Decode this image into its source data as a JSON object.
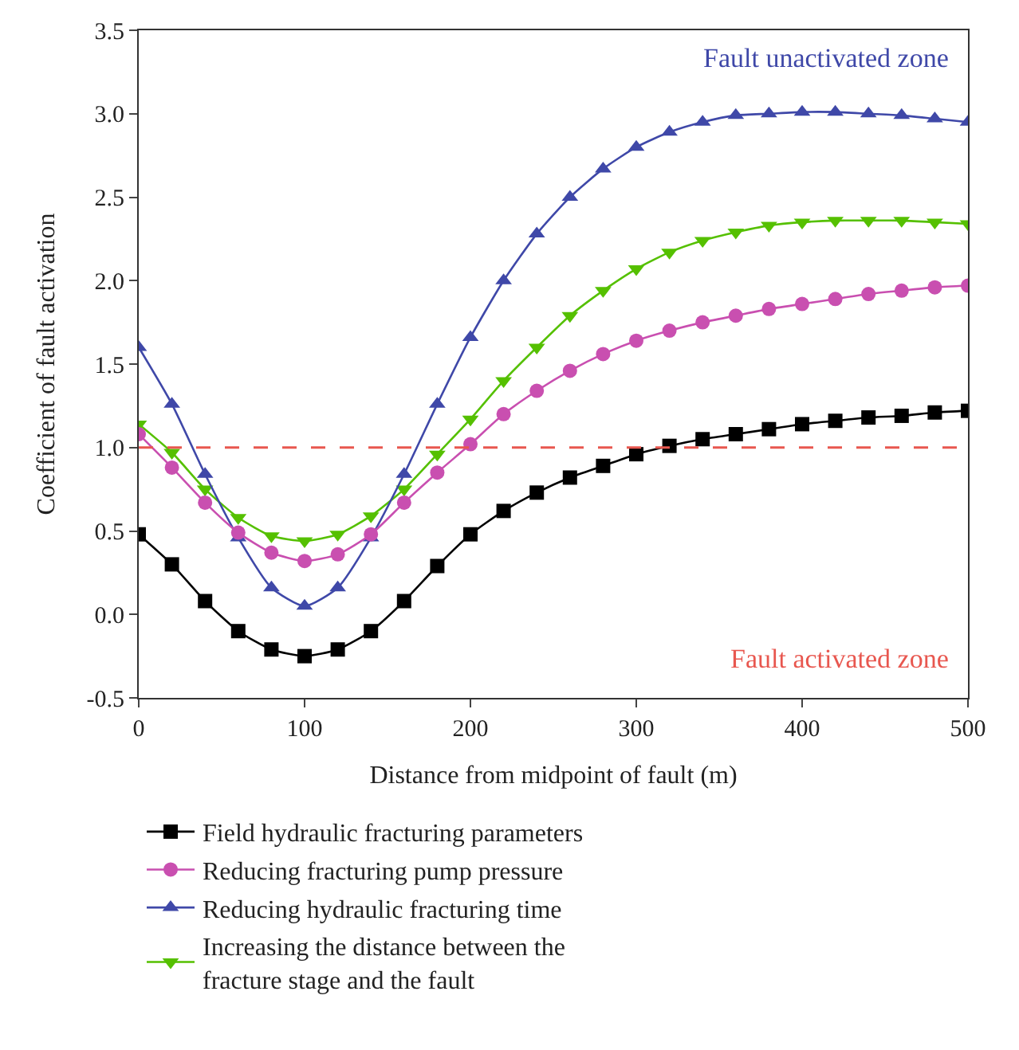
{
  "chart_data": {
    "type": "line",
    "xlabel": "Distance from midpoint of fault (m)",
    "ylabel": "Coefficient of fault activation",
    "x": [
      0,
      20,
      40,
      60,
      80,
      100,
      120,
      140,
      160,
      180,
      200,
      220,
      240,
      260,
      280,
      300,
      320,
      340,
      360,
      380,
      400,
      420,
      440,
      460,
      480,
      500
    ],
    "series": [
      {
        "name": "Field hydraulic fracturing parameters",
        "color": "#000000",
        "marker": "square",
        "values": [
          0.48,
          0.3,
          0.08,
          -0.1,
          -0.21,
          -0.25,
          -0.21,
          -0.1,
          0.08,
          0.29,
          0.48,
          0.62,
          0.73,
          0.82,
          0.89,
          0.96,
          1.01,
          1.05,
          1.08,
          1.11,
          1.14,
          1.16,
          1.18,
          1.19,
          1.21,
          1.22
        ]
      },
      {
        "name": "Reducing fracturing pump pressure",
        "color": "#c94fb0",
        "marker": "circle",
        "values": [
          1.08,
          0.88,
          0.67,
          0.49,
          0.37,
          0.32,
          0.36,
          0.48,
          0.67,
          0.85,
          1.02,
          1.2,
          1.34,
          1.46,
          1.56,
          1.64,
          1.7,
          1.75,
          1.79,
          1.83,
          1.86,
          1.89,
          1.92,
          1.94,
          1.96,
          1.97
        ]
      },
      {
        "name": "Reducing hydraulic fracturing time",
        "color": "#3f48a8",
        "marker": "triangle",
        "values": [
          1.6,
          1.26,
          0.84,
          0.46,
          0.16,
          0.05,
          0.16,
          0.46,
          0.84,
          1.26,
          1.66,
          2.0,
          2.28,
          2.5,
          2.67,
          2.8,
          2.89,
          2.95,
          2.99,
          3.0,
          3.01,
          3.01,
          3.0,
          2.99,
          2.97,
          2.95
        ]
      },
      {
        "name": "Increasing the distance between the fracture stage and the fault",
        "color": "#55c000",
        "marker": "triangle-down",
        "values": [
          1.14,
          0.97,
          0.75,
          0.58,
          0.47,
          0.44,
          0.48,
          0.59,
          0.75,
          0.96,
          1.17,
          1.4,
          1.6,
          1.79,
          1.94,
          2.07,
          2.17,
          2.24,
          2.29,
          2.33,
          2.35,
          2.36,
          2.36,
          2.36,
          2.35,
          2.34
        ]
      }
    ],
    "xlim": [
      0,
      500
    ],
    "xticks": [
      0,
      100,
      200,
      300,
      400,
      500
    ],
    "ylim": [
      -0.5,
      3.5
    ],
    "yticks": [
      -0.5,
      {
        "value": 0,
        "label": "0.0"
      },
      0.5,
      {
        "value": 1,
        "label": "1.0"
      },
      1.5,
      {
        "value": 2,
        "label": "2.0"
      },
      2.5,
      {
        "value": 3,
        "label": "3.0"
      },
      3.5
    ],
    "ref_lines": [
      {
        "axis": "y",
        "value": 1.0,
        "color": "#e8574f",
        "line_style": "dashed"
      }
    ],
    "annotations": [
      "Fault unactivated zone",
      "Fault activated zone"
    ],
    "legend": "bottom",
    "line_style": "solid"
  }
}
